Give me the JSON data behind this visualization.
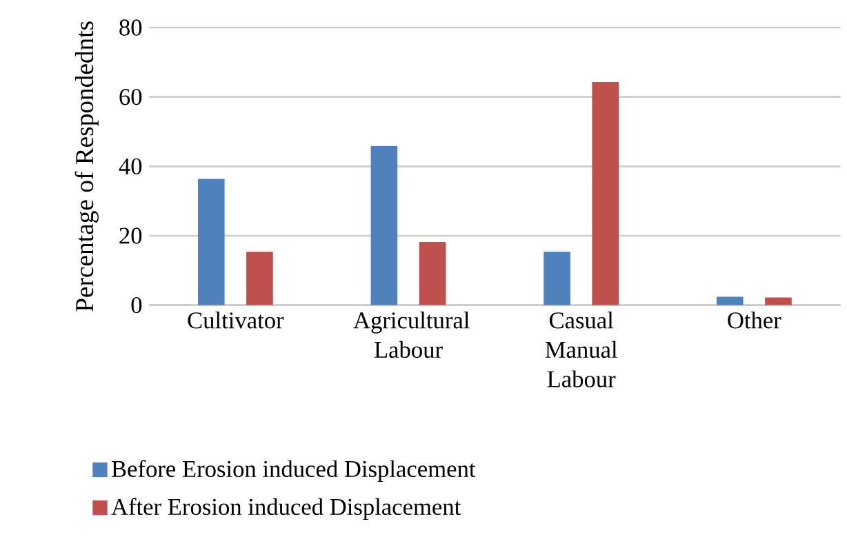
{
  "chart_data": {
    "type": "bar",
    "ylabel": "Percentage of Respondednts",
    "categories": [
      "Cultivator",
      "Agricultural Labour",
      "Casual Manual Labour",
      "Other"
    ],
    "series": [
      {
        "name": "Before Erosion induced Displacement",
        "color": "#4f81bd",
        "values": [
          36.4,
          45.9,
          15.4,
          2.4
        ]
      },
      {
        "name": "After Erosion induced Displacement",
        "color": "#c0504d",
        "values": [
          15.4,
          18.2,
          64.3,
          2.2
        ]
      }
    ],
    "ylim": [
      0,
      80
    ],
    "yticks": [
      0,
      20,
      40,
      60,
      80
    ],
    "grid": "y",
    "legend": "bottom left"
  }
}
